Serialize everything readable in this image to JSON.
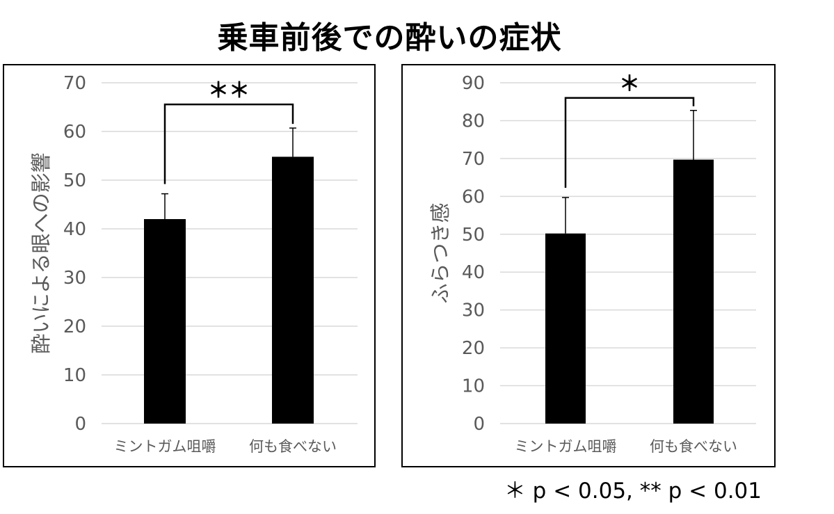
{
  "title": "乗車前後での酔いの症状",
  "footnote": "＊ p < 0.05, ** p < 0.01",
  "chart_data": [
    {
      "type": "bar",
      "ylabel": "酔いによる眼への影響",
      "categories": [
        "ミントガム咀嚼",
        "何も食べない"
      ],
      "values": [
        42,
        54.8
      ],
      "error": [
        5.2,
        5.9
      ],
      "ylim": [
        0,
        70
      ],
      "yticks": [
        0,
        10,
        20,
        30,
        40,
        50,
        60,
        70
      ],
      "significance": "＊＊",
      "grid": true,
      "bar_color": "#000000"
    },
    {
      "type": "bar",
      "ylabel": "ふらつき感",
      "categories": [
        "ミントガム咀嚼",
        "何も食べない"
      ],
      "values": [
        50.2,
        69.7
      ],
      "error": [
        9.5,
        13
      ],
      "ylim": [
        0,
        90
      ],
      "yticks": [
        0,
        10,
        20,
        30,
        40,
        50,
        60,
        70,
        80,
        90
      ],
      "significance": "＊",
      "grid": true,
      "bar_color": "#000000"
    }
  ]
}
